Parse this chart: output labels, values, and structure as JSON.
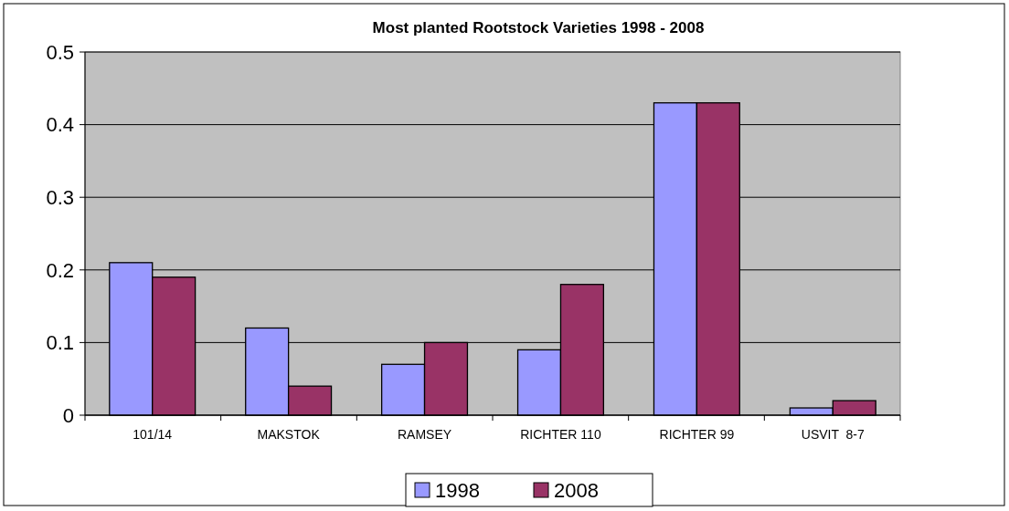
{
  "chart_data": {
    "type": "bar",
    "title": "Most planted Rootstock Varieties 1998 - 2008",
    "categories": [
      "101/14",
      "MAKSTOK",
      "RAMSEY",
      "RICHTER 110",
      "RICHTER 99",
      "USVIT  8-7"
    ],
    "series": [
      {
        "name": "1998",
        "color": "#9999ff",
        "values": [
          0.21,
          0.12,
          0.07,
          0.09,
          0.43,
          0.01
        ]
      },
      {
        "name": "2008",
        "color": "#993366",
        "values": [
          0.19,
          0.04,
          0.1,
          0.18,
          0.43,
          0.02
        ]
      }
    ],
    "ylim": [
      0,
      0.5
    ],
    "yticks": [
      0,
      0.1,
      0.2,
      0.3,
      0.4,
      0.5
    ],
    "grid": "y",
    "legend": "bottom"
  }
}
